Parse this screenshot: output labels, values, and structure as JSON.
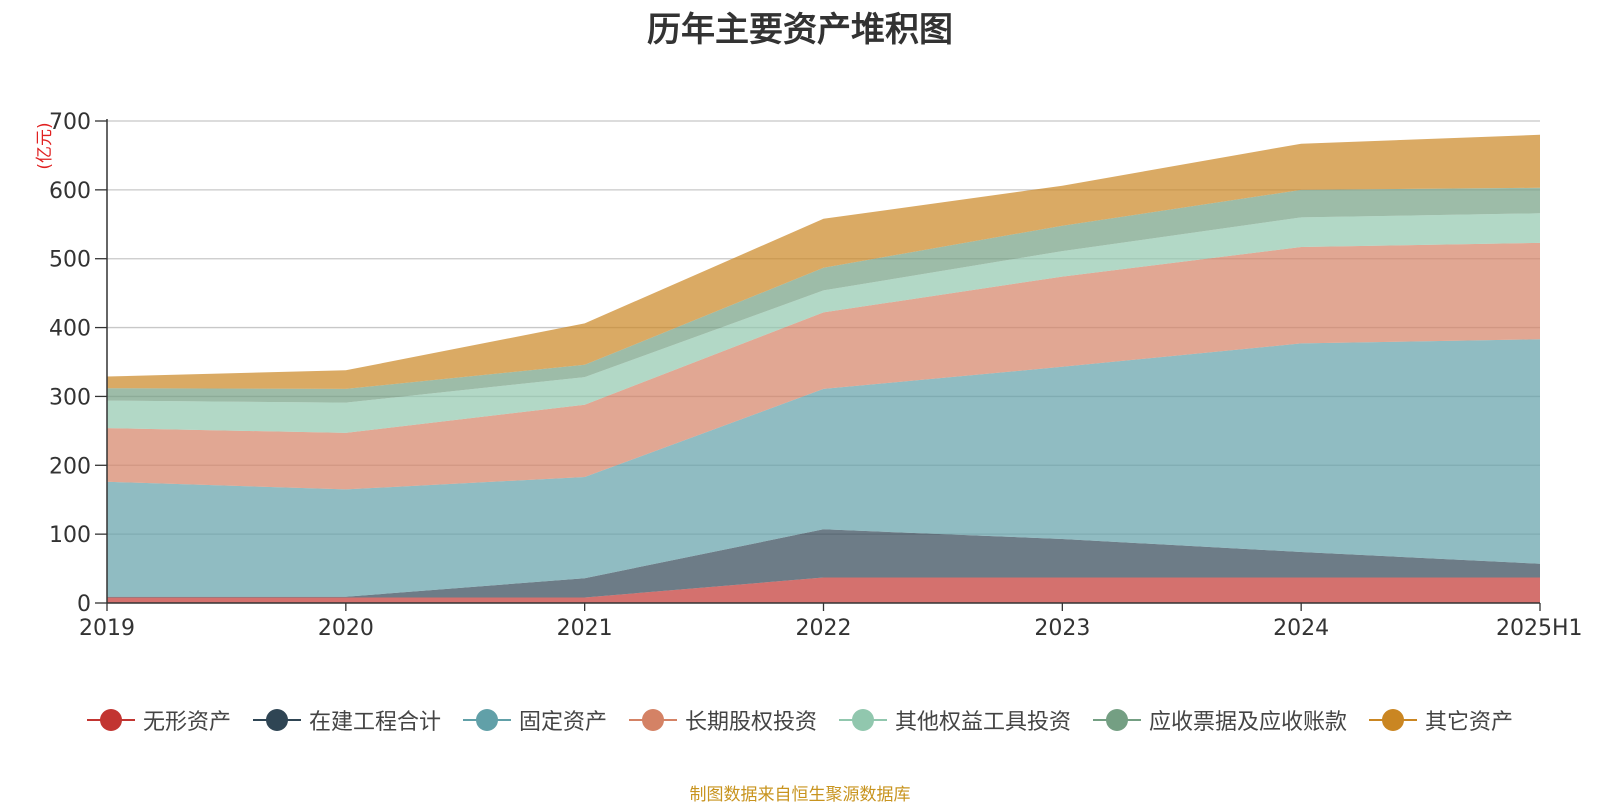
{
  "chart_data": {
    "type": "area",
    "stacked": true,
    "title": "历年主要资产堆积图",
    "ylabel": "(亿元)",
    "xlabel": "",
    "categories": [
      "2019",
      "2020",
      "2021",
      "2022",
      "2023",
      "2024",
      "2025H1"
    ],
    "ylim": [
      0,
      700
    ],
    "yticks": [
      0,
      100,
      200,
      300,
      400,
      500,
      600,
      700
    ],
    "grid": true,
    "legend_position": "bottom",
    "series": [
      {
        "name": "无形资产",
        "color": "#c23531",
        "values": [
          8,
          8,
          8,
          37,
          37,
          37,
          37
        ]
      },
      {
        "name": "在建工程合计",
        "color": "#2f4554",
        "values": [
          1,
          1,
          28,
          70,
          56,
          37,
          20
        ]
      },
      {
        "name": "固定资产",
        "color": "#61a0a8",
        "values": [
          167,
          156,
          147,
          204,
          250,
          303,
          326
        ]
      },
      {
        "name": "长期股权投资",
        "color": "#d48265",
        "values": [
          78,
          82,
          105,
          111,
          131,
          140,
          140
        ]
      },
      {
        "name": "其他权益工具投资",
        "color": "#91c7ae",
        "values": [
          40,
          44,
          40,
          32,
          37,
          43,
          43
        ]
      },
      {
        "name": "应收票据及应收账款",
        "color": "#749f83",
        "values": [
          18,
          20,
          18,
          33,
          37,
          40,
          37
        ]
      },
      {
        "name": "其它资产",
        "color": "#ca8622",
        "values": [
          17,
          27,
          60,
          71,
          58,
          67,
          77
        ]
      }
    ]
  },
  "source_note": "制图数据来自恒生聚源数据库"
}
